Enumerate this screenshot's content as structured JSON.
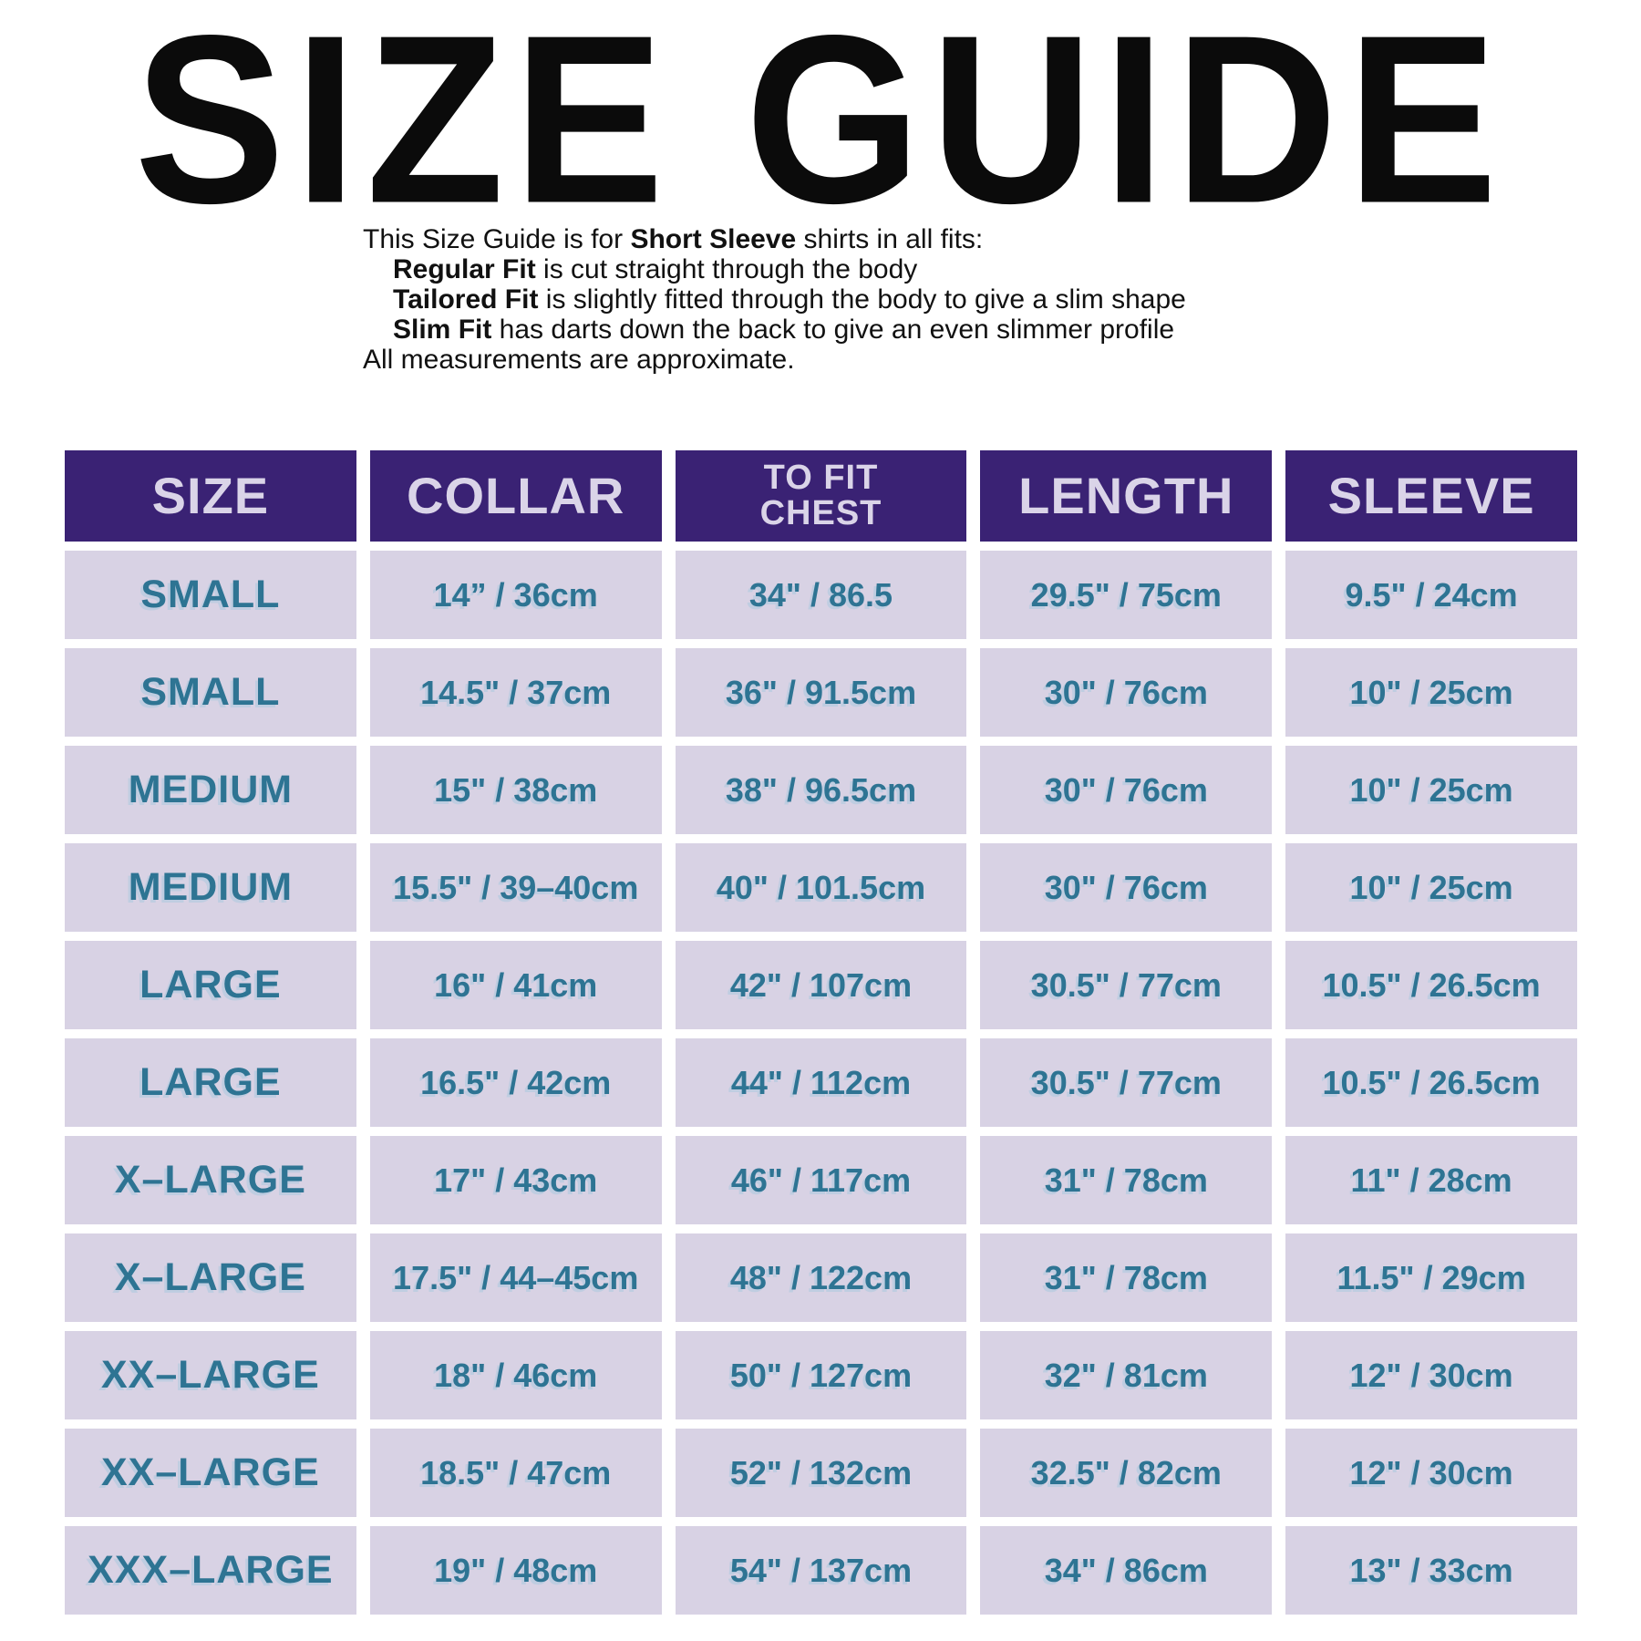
{
  "title": "SIZE GUIDE",
  "intro": {
    "lines": [
      {
        "pre": "This Size Guide is for ",
        "bold": "Short Sleeve",
        "post": " shirts in all fits:"
      },
      {
        "pre": "",
        "bold": "Regular Fit",
        "post": " is cut straight through the body"
      },
      {
        "pre": "",
        "bold": "Tailored Fit",
        "post": " is slightly fitted through the body to give a slim shape"
      },
      {
        "pre": "",
        "bold": "Slim Fit",
        "post": " has darts down the back to give an even slimmer profile"
      }
    ],
    "note": "All measurements are approximate."
  },
  "table": {
    "headers": [
      "SIZE",
      "COLLAR",
      "TO FIT\nCHEST",
      "LENGTH",
      "SLEEVE"
    ],
    "rows": [
      {
        "size": "SMALL",
        "collar": "14” / 36cm",
        "chest": "34\" / 86.5",
        "length": "29.5\" / 75cm",
        "sleeve": "9.5\" / 24cm"
      },
      {
        "size": "SMALL",
        "collar": "14.5\" / 37cm",
        "chest": "36\" / 91.5cm",
        "length": "30\" / 76cm",
        "sleeve": "10\" / 25cm"
      },
      {
        "size": "MEDIUM",
        "collar": "15\" / 38cm",
        "chest": "38\" / 96.5cm",
        "length": "30\" / 76cm",
        "sleeve": "10\" / 25cm"
      },
      {
        "size": "MEDIUM",
        "collar": "15.5\" / 39–40cm",
        "chest": "40\" / 101.5cm",
        "length": "30\" / 76cm",
        "sleeve": "10\" / 25cm"
      },
      {
        "size": "LARGE",
        "collar": "16\" / 41cm",
        "chest": "42\" / 107cm",
        "length": "30.5\" / 77cm",
        "sleeve": "10.5\" / 26.5cm"
      },
      {
        "size": "LARGE",
        "collar": "16.5\" / 42cm",
        "chest": "44\" / 112cm",
        "length": "30.5\" / 77cm",
        "sleeve": "10.5\" / 26.5cm"
      },
      {
        "size": "X–LARGE",
        "collar": "17\" / 43cm",
        "chest": "46\" / 117cm",
        "length": "31\" / 78cm",
        "sleeve": "11\" / 28cm"
      },
      {
        "size": "X–LARGE",
        "collar": "17.5\" / 44–45cm",
        "chest": "48\" / 122cm",
        "length": "31\" / 78cm",
        "sleeve": "11.5\" / 29cm"
      },
      {
        "size": "XX–LARGE",
        "collar": "18\" / 46cm",
        "chest": "50\" / 127cm",
        "length": "32\" / 81cm",
        "sleeve": "12\" / 30cm"
      },
      {
        "size": "XX–LARGE",
        "collar": "18.5\" / 47cm",
        "chest": "52\" / 132cm",
        "length": "32.5\" / 82cm",
        "sleeve": "12\" / 30cm"
      },
      {
        "size": "XXX–LARGE",
        "collar": "19\" / 48cm",
        "chest": "54\" / 137cm",
        "length": "34\" / 86cm",
        "sleeve": "13\" / 33cm"
      }
    ]
  },
  "colors": {
    "header_bg": "#3a2274",
    "header_text": "#dad4e8",
    "cell_bg": "#d8d2e4",
    "cell_text": "#2e7493",
    "title_text": "#0b0b0b",
    "page_bg": "#ffffff"
  }
}
